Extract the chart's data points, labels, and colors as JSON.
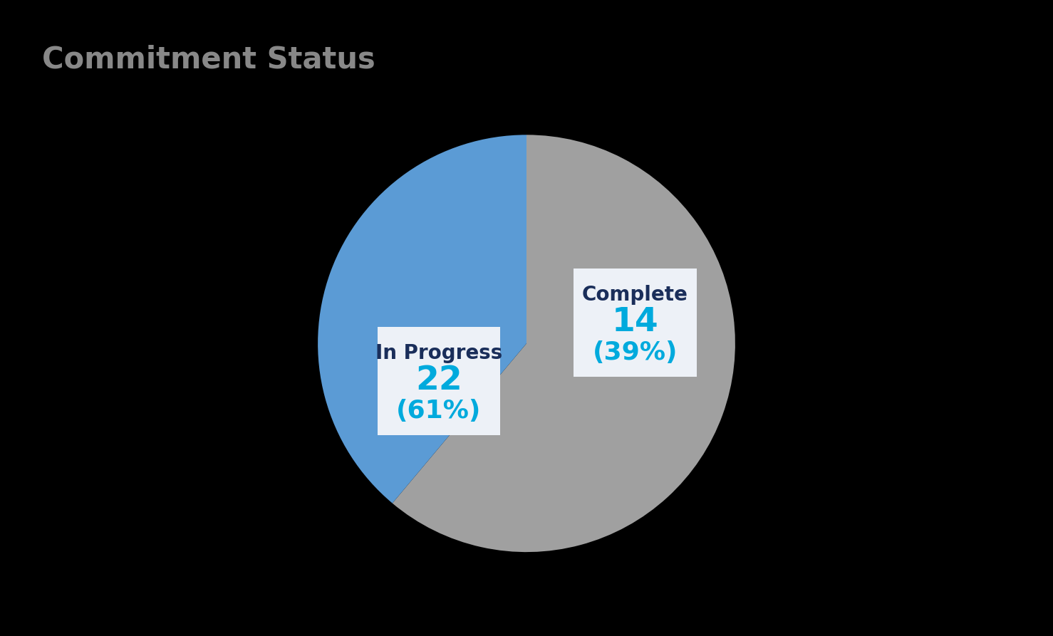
{
  "title": "Commitment Status",
  "title_color": "#888888",
  "title_fontsize": 30,
  "background_color": "#000000",
  "slices": [
    {
      "label": "In Progress",
      "value": 22,
      "pct": 61,
      "color": "#a0a0a0"
    },
    {
      "label": "Complete",
      "value": 14,
      "pct": 39,
      "color": "#5b9bd5"
    }
  ],
  "label_name_color": "#1a2e5a",
  "label_value_color": "#00aadd",
  "label_name_fontsize": 20,
  "label_value_fontsize": 34,
  "label_pct_fontsize": 26,
  "label_bg_color": "#edf1f7",
  "startangle": 90
}
